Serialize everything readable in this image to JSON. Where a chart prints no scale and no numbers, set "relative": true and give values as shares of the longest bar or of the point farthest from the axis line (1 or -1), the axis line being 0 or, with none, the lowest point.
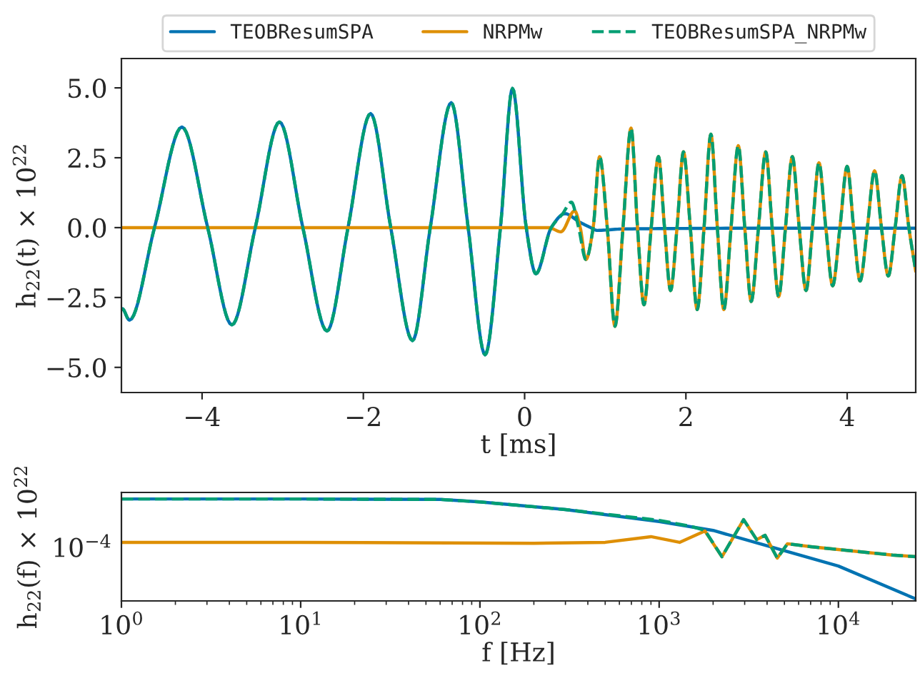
{
  "chart_data": [
    {
      "type": "line",
      "xlabel": "t [ms]",
      "ylabel": "h$_{22}$(t) × 10$^{22}$",
      "legend": "top",
      "xlim": [
        -5,
        4.85
      ],
      "ylim": [
        -5.9,
        6.05
      ],
      "xticks": [
        {
          "value": -4,
          "label": "−4"
        },
        {
          "value": -2,
          "label": "−2"
        },
        0,
        2,
        4
      ],
      "yticks": [
        {
          "value": -5,
          "label": "−5.0"
        },
        {
          "value": -2.5,
          "label": "−2.5"
        },
        {
          "value": 0,
          "label": "0.0"
        },
        {
          "value": 2.5,
          "label": "2.5"
        },
        {
          "value": 5,
          "label": "5.0"
        }
      ],
      "series": [
        {
          "name": "TEOBResumSPA",
          "color": "#0173b2",
          "line_style": "solid",
          "x": [
            -4.99,
            -4.9,
            -4.59,
            -4.25,
            -3.93,
            -3.63,
            -3.34,
            -3.04,
            -2.75,
            -2.45,
            -2.19,
            -1.91,
            -1.66,
            -1.39,
            -1.17,
            -0.91,
            -0.7,
            -0.49,
            -0.3,
            -0.15,
            0.02,
            0.14,
            0.33,
            0.5,
            0.68,
            0.82,
            0.9,
            1.2,
            2,
            3,
            4,
            4.85
          ],
          "values": [
            -2.9,
            -3.31,
            0,
            3.6,
            0,
            -3.48,
            0,
            3.78,
            0,
            -3.7,
            0,
            4.08,
            0,
            -4.04,
            0,
            4.47,
            0,
            -4.55,
            0,
            4.98,
            0,
            -1.65,
            0,
            0.5,
            0.2,
            0,
            -0.1,
            -0.05,
            -0.03,
            -0.02,
            -0.02,
            -0.02
          ]
        },
        {
          "name": "NRPMw",
          "color": "#de8f05",
          "line_style": "solid",
          "x": [
            -5,
            0.3,
            0.45,
            0.62,
            0.69,
            0.76,
            0.85,
            0.93,
            1.025,
            1.12,
            1.22,
            1.32,
            1.4,
            1.48,
            1.57,
            1.66,
            1.735,
            1.81,
            1.89,
            1.97,
            2.055,
            2.14,
            2.225,
            2.31,
            2.39,
            2.47,
            2.56,
            2.65,
            2.73,
            2.81,
            2.9,
            2.99,
            3.07,
            3.15,
            3.235,
            3.32,
            3.405,
            3.49,
            3.57,
            3.65,
            3.735,
            3.82,
            3.91,
            4.0,
            4.08,
            4.16,
            4.25,
            4.34,
            4.425,
            4.51,
            4.595,
            4.68,
            4.765,
            4.85
          ],
          "values": [
            0,
            0,
            -0.15,
            0.6,
            0,
            -1.14,
            0,
            2.54,
            0,
            -3.53,
            0,
            3.56,
            0,
            -2.76,
            0,
            2.54,
            0,
            -2.25,
            0,
            2.71,
            0,
            -2.93,
            0,
            3.34,
            0,
            -2.93,
            0,
            2.93,
            0,
            -2.64,
            0,
            2.71,
            0,
            -2.47,
            0,
            2.54,
            0,
            -2.25,
            0,
            2.32,
            0,
            -2.08,
            0,
            2.19,
            0,
            -1.91,
            0,
            2.03,
            0,
            -1.73,
            0,
            1.86,
            0,
            -1.56
          ]
        },
        {
          "name": "TEOBResumSPA_NRPMw",
          "color": "#029e73",
          "line_style": "dashed",
          "x": [
            -4.99,
            -4.9,
            -4.59,
            -4.25,
            -3.93,
            -3.63,
            -3.34,
            -3.04,
            -2.75,
            -2.45,
            -2.19,
            -1.91,
            -1.66,
            -1.39,
            -1.17,
            -0.91,
            -0.7,
            -0.49,
            -0.3,
            -0.15,
            0.02,
            0.14,
            0.33,
            0.47,
            0.58,
            0.67,
            0.76,
            0.85,
            0.93,
            1.025,
            1.12,
            1.22,
            1.32,
            1.4,
            1.48,
            1.57,
            1.66,
            1.735,
            1.81,
            1.89,
            1.97,
            2.055,
            2.14,
            2.225,
            2.31,
            2.39,
            2.47,
            2.56,
            2.65,
            2.73,
            2.81,
            2.9,
            2.99,
            3.07,
            3.15,
            3.235,
            3.32,
            3.405,
            3.49,
            3.57,
            3.65,
            3.735,
            3.82,
            3.91,
            4.0,
            4.08,
            4.16,
            4.25,
            4.34,
            4.425,
            4.51,
            4.595,
            4.68,
            4.765,
            4.85
          ],
          "values": [
            -2.9,
            -3.31,
            0,
            3.6,
            0,
            -3.48,
            0,
            3.78,
            0,
            -3.7,
            0,
            4.08,
            0,
            -4.04,
            0,
            4.47,
            0,
            -4.55,
            0,
            4.98,
            0,
            -1.65,
            0,
            0.49,
            0.91,
            0,
            -1.14,
            0,
            2.54,
            0,
            -3.53,
            0,
            3.56,
            0,
            -2.76,
            0,
            2.54,
            0,
            -2.25,
            0,
            2.71,
            0,
            -2.93,
            0,
            3.34,
            0,
            -2.93,
            0,
            2.93,
            0,
            -2.64,
            0,
            2.71,
            0,
            -2.47,
            0,
            2.54,
            0,
            -2.25,
            0,
            2.32,
            0,
            -2.08,
            0,
            2.19,
            0,
            -1.91,
            0,
            2.03,
            0,
            -1.73,
            0,
            1.86,
            0,
            -1.56
          ]
        }
      ]
    },
    {
      "type": "line",
      "xlabel": "f [Hz]",
      "ylabel": "h$_{22}$(f) × 10$^{22}$",
      "log": "x",
      "legend": false,
      "relative": true,
      "annotations": [
        "10$^{−4}$"
      ],
      "xlim": [
        1,
        27000
      ],
      "xticks": [
        {
          "value": 1,
          "label": "10$^{0}$"
        },
        {
          "value": 10,
          "label": "10$^{1}$"
        },
        {
          "value": 100,
          "label": "10$^{2}$"
        },
        {
          "value": 1000,
          "label": "10$^{3}$"
        },
        {
          "value": 10000,
          "label": "10$^{4}$"
        }
      ],
      "series": [
        {
          "color": "#0173b2",
          "line_style": "solid",
          "x": [
            1,
            10,
            60,
            100,
            300,
            1000,
            2000,
            10000,
            27000
          ],
          "values": [
            1,
            1,
            0.995,
            0.97,
            0.894,
            0.774,
            0.685,
            0.329,
            0
          ]
        },
        {
          "color": "#de8f05",
          "line_style": "solid",
          "x": [
            1,
            10,
            200,
            500,
            900,
            1300,
            1800,
            2240,
            2960,
            3500,
            3900,
            4560,
            5200,
            7000,
            10000,
            20000,
            27000
          ],
          "values": [
            0.566,
            0.566,
            0.557,
            0.566,
            0.623,
            0.566,
            0.679,
            0.422,
            0.793,
            0.593,
            0.636,
            0.408,
            0.552,
            0.523,
            0.494,
            0.439,
            0.422
          ]
        },
        {
          "color": "#029e73",
          "line_style": "dashed",
          "x": [
            1,
            10,
            60,
            100,
            300,
            1000,
            1500,
            1800,
            2240,
            2960,
            3500,
            3900,
            4560,
            5200,
            7000,
            10000,
            20000,
            27000
          ],
          "values": [
            1,
            1,
            0.995,
            0.97,
            0.894,
            0.786,
            0.727,
            0.685,
            0.422,
            0.793,
            0.593,
            0.636,
            0.408,
            0.552,
            0.523,
            0.494,
            0.439,
            0.422
          ]
        }
      ]
    }
  ]
}
